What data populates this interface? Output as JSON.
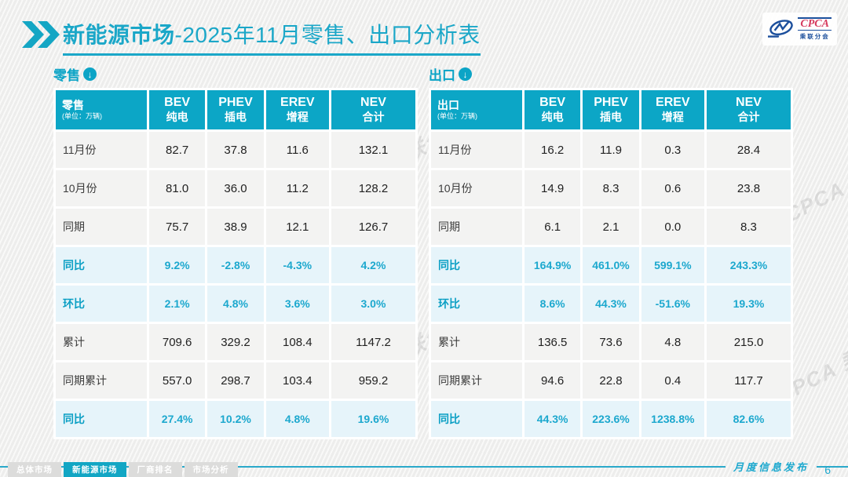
{
  "header": {
    "title_bold": "新能源市场",
    "title_rest": "-2025年11月零售、出口分析表",
    "logo": {
      "name": "CPCA",
      "subtitle": "乘联分会"
    }
  },
  "watermark": {
    "text": "CPCA 乘联分会"
  },
  "colors": {
    "teal": "#0ca6c6",
    "highlight_row_bg": "#e6f4fa",
    "normal_row_bg": "#f3f3f2",
    "page_bg": "#f1f1f0",
    "percent_text": "#1ca8ce"
  },
  "tables": [
    {
      "section_label": "零售",
      "corner_title": "零售",
      "unit": "(单位：万辆)",
      "columns": [
        {
          "line1": "BEV",
          "line2": "纯电"
        },
        {
          "line1": "PHEV",
          "line2": "插电"
        },
        {
          "line1": "EREV",
          "line2": "增程"
        },
        {
          "line1": "NEV",
          "line2": "合计"
        }
      ],
      "rows": [
        {
          "label": "11月份",
          "values": [
            "82.7",
            "37.8",
            "11.6",
            "132.1"
          ],
          "highlight": false
        },
        {
          "label": "10月份",
          "values": [
            "81.0",
            "36.0",
            "11.2",
            "128.2"
          ],
          "highlight": false
        },
        {
          "label": "同期",
          "values": [
            "75.7",
            "38.9",
            "12.1",
            "126.7"
          ],
          "highlight": false
        },
        {
          "label": "同比",
          "values": [
            "9.2%",
            "-2.8%",
            "-4.3%",
            "4.2%"
          ],
          "highlight": true
        },
        {
          "label": "环比",
          "values": [
            "2.1%",
            "4.8%",
            "3.6%",
            "3.0%"
          ],
          "highlight": true
        },
        {
          "label": "累计",
          "values": [
            "709.6",
            "329.2",
            "108.4",
            "1147.2"
          ],
          "highlight": false
        },
        {
          "label": "同期累计",
          "values": [
            "557.0",
            "298.7",
            "103.4",
            "959.2"
          ],
          "highlight": false
        },
        {
          "label": "同比",
          "values": [
            "27.4%",
            "10.2%",
            "4.8%",
            "19.6%"
          ],
          "highlight": true
        }
      ]
    },
    {
      "section_label": "出口",
      "corner_title": "出口",
      "unit": "(单位：万辆)",
      "columns": [
        {
          "line1": "BEV",
          "line2": "纯电"
        },
        {
          "line1": "PHEV",
          "line2": "插电"
        },
        {
          "line1": "EREV",
          "line2": "增程"
        },
        {
          "line1": "NEV",
          "line2": "合计"
        }
      ],
      "rows": [
        {
          "label": "11月份",
          "values": [
            "16.2",
            "11.9",
            "0.3",
            "28.4"
          ],
          "highlight": false
        },
        {
          "label": "10月份",
          "values": [
            "14.9",
            "8.3",
            "0.6",
            "23.8"
          ],
          "highlight": false
        },
        {
          "label": "同期",
          "values": [
            "6.1",
            "2.1",
            "0.0",
            "8.3"
          ],
          "highlight": false
        },
        {
          "label": "同比",
          "values": [
            "164.9%",
            "461.0%",
            "599.1%",
            "243.3%"
          ],
          "highlight": true
        },
        {
          "label": "环比",
          "values": [
            "8.6%",
            "44.3%",
            "-51.6%",
            "19.3%"
          ],
          "highlight": true
        },
        {
          "label": "累计",
          "values": [
            "136.5",
            "73.6",
            "4.8",
            "215.0"
          ],
          "highlight": false
        },
        {
          "label": "同期累计",
          "values": [
            "94.6",
            "22.8",
            "0.4",
            "117.7"
          ],
          "highlight": false
        },
        {
          "label": "同比",
          "values": [
            "44.3%",
            "223.6%",
            "1238.8%",
            "82.6%"
          ],
          "highlight": true
        }
      ]
    }
  ],
  "footer": {
    "release_label": "月度信息发布",
    "page": "6",
    "tabs": [
      {
        "label": "总体市场",
        "active": false
      },
      {
        "label": "新能源市场",
        "active": true
      },
      {
        "label": "厂商排名",
        "active": false
      },
      {
        "label": "市场分析",
        "active": false
      }
    ]
  }
}
